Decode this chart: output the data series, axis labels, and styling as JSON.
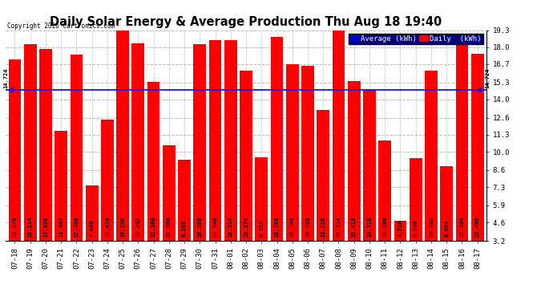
{
  "title": "Daily Solar Energy & Average Production Thu Aug 18 19:40",
  "copyright": "Copyright 2016 Cartronics.com",
  "average_value": 14.724,
  "bar_color": "#FF0000",
  "average_line_color": "#0000FF",
  "background_color": "#FFFFFF",
  "plot_bg_color": "#FFFFFF",
  "grid_color": "#AAAAAA",
  "categories": [
    "07-18",
    "07-19",
    "07-20",
    "07-21",
    "07-22",
    "07-23",
    "07-24",
    "07-25",
    "07-26",
    "07-27",
    "07-28",
    "07-29",
    "07-30",
    "07-31",
    "08-01",
    "08-02",
    "08-03",
    "08-04",
    "08-05",
    "08-06",
    "08-07",
    "08-08",
    "08-09",
    "08-10",
    "08-11",
    "08-12",
    "08-13",
    "08-14",
    "08-15",
    "08-16",
    "08-17"
  ],
  "values": [
    17.078,
    18.214,
    17.838,
    11.602,
    17.408,
    7.446,
    12.458,
    19.336,
    18.262,
    15.366,
    10.508,
    9.368,
    18.208,
    18.548,
    18.514,
    16.174,
    9.552,
    18.768,
    16.704,
    16.556,
    13.228,
    19.514,
    15.418,
    14.716,
    10.88,
    4.71,
    9.506,
    16.202,
    8.894,
    18.164,
    17.49
  ],
  "ylim_min": 3.2,
  "ylim_max": 19.3,
  "yticks": [
    3.2,
    4.6,
    5.9,
    7.3,
    8.6,
    10.0,
    11.3,
    12.6,
    14.0,
    15.3,
    16.7,
    18.0,
    19.3
  ],
  "legend_avg_color": "#0000CC",
  "legend_daily_color": "#FF0000",
  "legend_avg_text": "Average (kWh)",
  "legend_daily_text": "Daily  (kWh)",
  "label_fontsize": 5.0,
  "tick_fontsize": 6.5,
  "title_fontsize": 10.5,
  "bar_bottom": 3.2
}
